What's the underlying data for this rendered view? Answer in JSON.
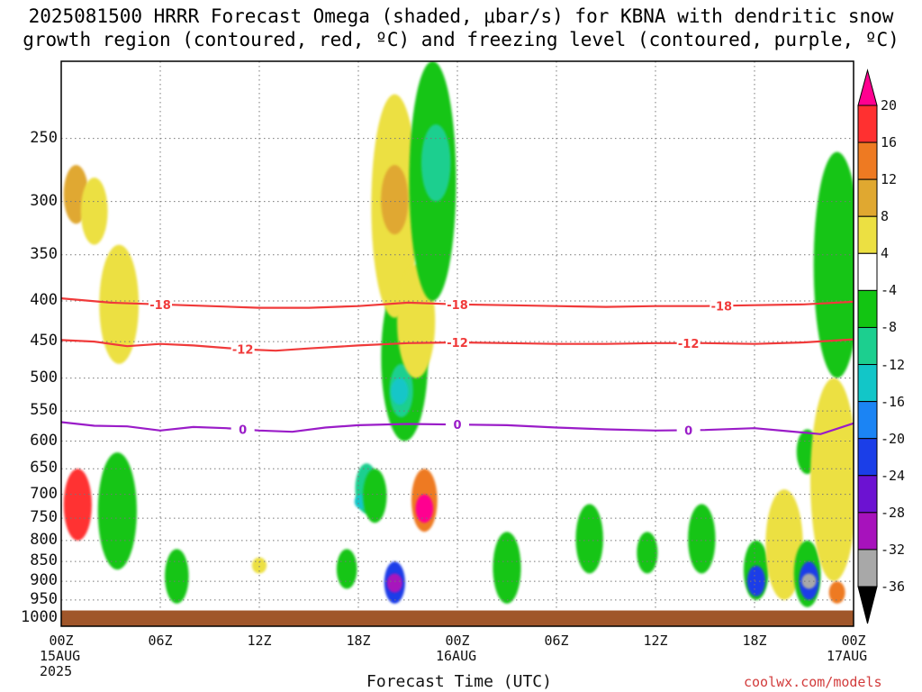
{
  "title_lines": [
    "2025081500 HRRR Forecast Omega (shaded, μbar/s) for KBNA with dendritic snow",
    "growth region (contoured, red, ºC) and freezing level (contoured, purple, ºC)"
  ],
  "chart_data": {
    "type": "heatmap",
    "title": "2025081500 HRRR Forecast Omega (shaded, μbar/s) for KBNA with dendritic snow growth region (contoured, red, ºC) and freezing level (contoured, purple, ºC)",
    "xlabel": "Forecast Time (UTC)",
    "ylabel": "",
    "x_ticks": [
      "00Z",
      "06Z",
      "12Z",
      "18Z",
      "00Z",
      "06Z",
      "12Z",
      "18Z",
      "00Z"
    ],
    "x_tick_hours": [
      0,
      6,
      12,
      18,
      24,
      30,
      36,
      42,
      48
    ],
    "x_sublabels": [
      {
        "hour": 0,
        "lines": [
          "15AUG",
          "2025"
        ]
      },
      {
        "hour": 24,
        "lines": [
          "16AUG"
        ]
      },
      {
        "hour": 48,
        "lines": [
          "17AUG"
        ]
      }
    ],
    "xlim_hours": [
      0,
      48
    ],
    "y_ticks": [
      250,
      300,
      350,
      400,
      450,
      500,
      550,
      600,
      650,
      700,
      750,
      800,
      850,
      900,
      950,
      1000
    ],
    "ylim_hpa": [
      200,
      1025
    ],
    "y_scale": "log-pressure",
    "grid": true,
    "colorbar": {
      "labels": [
        "20",
        "16",
        "12",
        "8",
        "4",
        "-4",
        "-8",
        "-12",
        "-16",
        "-20",
        "-24",
        "-28",
        "-32",
        "-36"
      ],
      "colors": [
        "#ff0090",
        "#ff3030",
        "#ee7a22",
        "#e0a830",
        "#ece042",
        "#ffffff",
        "#12c512",
        "#1ccf8f",
        "#12c6c8",
        "#1b84f4",
        "#1b3ee8",
        "#6c12d2",
        "#a712bc",
        "#a8a8a8",
        "#000000"
      ]
    },
    "contours": [
      {
        "label": "-18",
        "color": "#f03a3a",
        "points": [
          [
            0,
            397
          ],
          [
            3,
            402
          ],
          [
            6,
            404
          ],
          [
            9,
            406
          ],
          [
            12,
            408
          ],
          [
            15,
            408
          ],
          [
            18,
            406
          ],
          [
            21,
            402
          ],
          [
            24,
            404
          ],
          [
            27,
            405
          ],
          [
            30,
            406
          ],
          [
            33,
            407
          ],
          [
            36,
            406
          ],
          [
            39,
            406
          ],
          [
            42,
            405
          ],
          [
            45,
            404
          ],
          [
            48,
            401
          ]
        ]
      },
      {
        "label": "-12",
        "color": "#f03a3a",
        "points": [
          [
            0,
            448
          ],
          [
            2,
            450
          ],
          [
            4,
            456
          ],
          [
            6,
            453
          ],
          [
            8,
            455
          ],
          [
            11,
            460
          ],
          [
            13,
            462
          ],
          [
            15,
            459
          ],
          [
            18,
            455
          ],
          [
            21,
            452
          ],
          [
            24,
            451
          ],
          [
            27,
            452
          ],
          [
            30,
            453
          ],
          [
            33,
            453
          ],
          [
            36,
            452
          ],
          [
            39,
            452
          ],
          [
            42,
            453
          ],
          [
            45,
            451
          ],
          [
            48,
            447
          ]
        ]
      },
      {
        "label": "0",
        "color": "#9a1cc8",
        "points": [
          [
            0,
            568
          ],
          [
            2,
            574
          ],
          [
            4,
            575
          ],
          [
            6,
            582
          ],
          [
            8,
            576
          ],
          [
            10,
            578
          ],
          [
            12,
            582
          ],
          [
            14,
            584
          ],
          [
            16,
            577
          ],
          [
            18,
            573
          ],
          [
            21,
            571
          ],
          [
            24,
            572
          ],
          [
            27,
            573
          ],
          [
            30,
            577
          ],
          [
            33,
            580
          ],
          [
            36,
            582
          ],
          [
            39,
            581
          ],
          [
            42,
            578
          ],
          [
            44,
            583
          ],
          [
            46,
            588
          ],
          [
            48,
            570
          ]
        ]
      }
    ],
    "omega_features": [
      {
        "hour": 0.9,
        "p_top": 270,
        "p_bottom": 320,
        "value": 8
      },
      {
        "hour": 1.0,
        "p_top": 650,
        "p_bottom": 800,
        "value": 16
      },
      {
        "hour": 2.0,
        "p_top": 280,
        "p_bottom": 340,
        "value": 4
      },
      {
        "hour": 3.5,
        "p_top": 340,
        "p_bottom": 480,
        "value": 4
      },
      {
        "hour": 4.0,
        "p_top": 200,
        "p_bottom": 260,
        "value": -4
      },
      {
        "hour": 3.4,
        "p_top": 620,
        "p_bottom": 870,
        "value": -8
      },
      {
        "hour": 7.0,
        "p_top": 820,
        "p_bottom": 960,
        "value": -8
      },
      {
        "hour": 12.0,
        "p_top": 840,
        "p_bottom": 880,
        "value": 4
      },
      {
        "hour": 15.8,
        "p_top": 260,
        "p_bottom": 320,
        "value": -4
      },
      {
        "hour": 17.3,
        "p_top": 820,
        "p_bottom": 920,
        "value": -8
      },
      {
        "hour": 18.5,
        "p_top": 640,
        "p_bottom": 740,
        "value": -12
      },
      {
        "hour": 18.2,
        "p_top": 700,
        "p_bottom": 730,
        "value": -16
      },
      {
        "hour": 19.0,
        "p_top": 650,
        "p_bottom": 760,
        "value": -8
      },
      {
        "hour": 20.8,
        "p_top": 370,
        "p_bottom": 600,
        "value": -8
      },
      {
        "hour": 20.6,
        "p_top": 480,
        "p_bottom": 560,
        "value": -12
      },
      {
        "hour": 20.5,
        "p_top": 500,
        "p_bottom": 540,
        "value": -16
      },
      {
        "hour": 20.2,
        "p_top": 220,
        "p_bottom": 420,
        "value": 4
      },
      {
        "hour": 20.2,
        "p_top": 270,
        "p_bottom": 330,
        "value": 8
      },
      {
        "hour": 20.2,
        "p_top": 850,
        "p_bottom": 960,
        "value": -24
      },
      {
        "hour": 20.2,
        "p_top": 880,
        "p_bottom": 930,
        "value": -32
      },
      {
        "hour": 22.0,
        "p_top": 650,
        "p_bottom": 780,
        "value": 12
      },
      {
        "hour": 22.0,
        "p_top": 700,
        "p_bottom": 760,
        "value": 20
      },
      {
        "hour": 21.5,
        "p_top": 360,
        "p_bottom": 500,
        "value": 4
      },
      {
        "hour": 22.5,
        "p_top": 200,
        "p_bottom": 400,
        "value": -8
      },
      {
        "hour": 22.7,
        "p_top": 240,
        "p_bottom": 300,
        "value": -12
      },
      {
        "hour": 27.0,
        "p_top": 780,
        "p_bottom": 960,
        "value": -8
      },
      {
        "hour": 32.0,
        "p_top": 720,
        "p_bottom": 880,
        "value": -8
      },
      {
        "hour": 35.5,
        "p_top": 780,
        "p_bottom": 880,
        "value": -8
      },
      {
        "hour": 38.8,
        "p_top": 720,
        "p_bottom": 880,
        "value": -8
      },
      {
        "hour": 42.1,
        "p_top": 800,
        "p_bottom": 950,
        "value": -8
      },
      {
        "hour": 42.1,
        "p_top": 860,
        "p_bottom": 940,
        "value": -24
      },
      {
        "hour": 43.8,
        "p_top": 690,
        "p_bottom": 950,
        "value": 4
      },
      {
        "hour": 45.2,
        "p_top": 580,
        "p_bottom": 660,
        "value": -8
      },
      {
        "hour": 45.2,
        "p_top": 800,
        "p_bottom": 970,
        "value": -8
      },
      {
        "hour": 45.3,
        "p_top": 850,
        "p_bottom": 950,
        "value": -24
      },
      {
        "hour": 45.3,
        "p_top": 880,
        "p_bottom": 920,
        "value": -36
      },
      {
        "hour": 47.0,
        "p_top": 260,
        "p_bottom": 500,
        "value": -8
      },
      {
        "hour": 46.8,
        "p_top": 500,
        "p_bottom": 900,
        "value": 4
      },
      {
        "hour": 47.0,
        "p_top": 900,
        "p_bottom": 960,
        "value": 12
      }
    ],
    "surface_p_hpa": 1000
  },
  "xaxis": {
    "label": "Forecast Time (UTC)"
  },
  "credit": "coolwx.com/models"
}
